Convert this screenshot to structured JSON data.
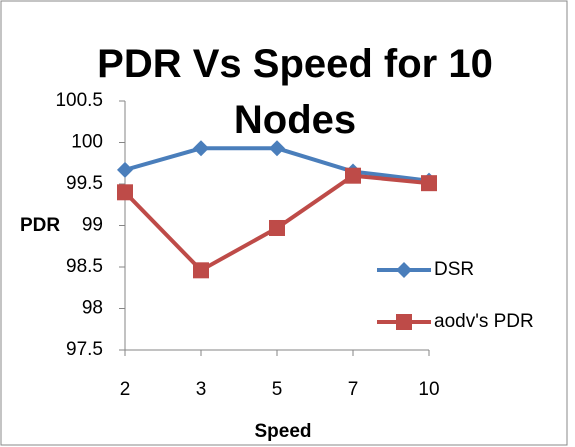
{
  "chart_data": {
    "type": "line",
    "title": "PDR Vs Speed for 10 Nodes",
    "x_label": "Speed",
    "y_label": "PDR",
    "categories": [
      "2",
      "3",
      "5",
      "7",
      "10"
    ],
    "series": [
      {
        "name": "DSR",
        "color": "#4a7ebb",
        "marker": "diamond",
        "values": [
          99.67,
          99.93,
          99.93,
          99.65,
          99.54
        ]
      },
      {
        "name": "aodv's PDR",
        "color": "#be4b48",
        "marker": "square",
        "values": [
          99.4,
          98.46,
          98.97,
          99.6,
          99.51
        ]
      }
    ],
    "ylim": [
      97.5,
      100.5
    ],
    "yticks": [
      97.5,
      98,
      98.5,
      99,
      99.5,
      100,
      100.5
    ],
    "grid": false,
    "legend": "right"
  }
}
